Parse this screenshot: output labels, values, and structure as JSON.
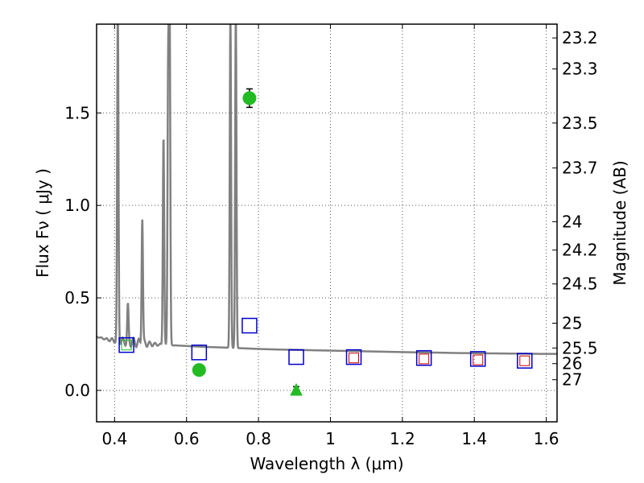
{
  "chart_data": {
    "type": "scatter",
    "xlabel": "Wavelength  λ (μm)",
    "ylabel": "Flux  Fν  ( μJy )",
    "y2label": "Magnitude (AB)",
    "xlim": [
      0.35,
      1.63
    ],
    "ylim": [
      -0.17,
      1.98
    ],
    "grid": true,
    "x_ticks": [
      0.4,
      0.6,
      0.8,
      1.0,
      1.2,
      1.4,
      1.6
    ],
    "x_tick_labels": [
      "0.4",
      "0.6",
      "0.8",
      "1",
      "1.2",
      "1.4",
      "1.6"
    ],
    "y_ticks": [
      0.0,
      0.5,
      1.0,
      1.5
    ],
    "y_tick_labels": [
      "0.0",
      "0.5",
      "1.0",
      "1.5"
    ],
    "y2_ticks": [
      {
        "label": "23.2",
        "flux": 1.9055
      },
      {
        "label": "23.3",
        "flux": 1.7378
      },
      {
        "label": "23.5",
        "flux": 1.4454
      },
      {
        "label": "23.7",
        "flux": 1.2023
      },
      {
        "label": "24",
        "flux": 0.912
      },
      {
        "label": "24.2",
        "flux": 0.7586
      },
      {
        "label": "24.5",
        "flux": 0.5754
      },
      {
        "label": "25",
        "flux": 0.3631
      },
      {
        "label": "25.5",
        "flux": 0.2291
      },
      {
        "label": "26",
        "flux": 0.1445
      },
      {
        "label": "27",
        "flux": 0.0575
      }
    ],
    "colors": {
      "model": "#808080",
      "detection": "#22bb22",
      "model_photometry": "#0000cc",
      "upper_limit": "#cc0000",
      "errorbar": "#000000",
      "grid": "#555555"
    },
    "series": [
      {
        "kind": "model_spectrum",
        "continuum": [
          [
            0.35,
            0.29
          ],
          [
            0.38,
            0.275
          ],
          [
            0.4,
            0.27
          ],
          [
            0.45,
            0.26
          ],
          [
            0.5,
            0.25
          ],
          [
            0.55,
            0.245
          ],
          [
            0.6,
            0.24
          ],
          [
            0.65,
            0.235
          ],
          [
            0.7,
            0.232
          ],
          [
            0.75,
            0.228
          ],
          [
            0.8,
            0.224
          ],
          [
            0.85,
            0.221
          ],
          [
            0.9,
            0.219
          ],
          [
            0.95,
            0.217
          ],
          [
            1.0,
            0.215
          ],
          [
            1.05,
            0.213
          ],
          [
            1.1,
            0.211
          ],
          [
            1.15,
            0.209
          ],
          [
            1.2,
            0.207
          ],
          [
            1.25,
            0.205
          ],
          [
            1.3,
            0.204
          ],
          [
            1.35,
            0.202
          ],
          [
            1.4,
            0.201
          ],
          [
            1.45,
            0.2
          ],
          [
            1.5,
            0.199
          ],
          [
            1.55,
            0.198
          ],
          [
            1.6,
            0.197
          ],
          [
            1.63,
            0.197
          ]
        ],
        "emission_lines": [
          {
            "center": 0.409,
            "peak": 2.05
          },
          {
            "center": 0.437,
            "peak": 0.45
          },
          {
            "center": 0.477,
            "peak": 0.94
          },
          {
            "center": 0.536,
            "peak": 1.38
          },
          {
            "center": 0.549,
            "peak": 1.74
          },
          {
            "center": 0.553,
            "peak": 2.05
          },
          {
            "center": 0.722,
            "peak": 2.05
          },
          {
            "center": 0.737,
            "peak": 2.05
          }
        ]
      },
      {
        "kind": "model_photometry",
        "marker": "open-square",
        "points": [
          [
            0.433,
            0.245
          ],
          [
            0.635,
            0.205
          ],
          [
            0.775,
            0.35
          ],
          [
            0.905,
            0.18
          ],
          [
            1.065,
            0.18
          ],
          [
            1.26,
            0.175
          ],
          [
            1.41,
            0.17
          ],
          [
            1.54,
            0.16
          ]
        ]
      },
      {
        "kind": "upper_limit",
        "marker": "open-square-small",
        "points": [
          [
            0.433,
            0.245
          ],
          [
            1.065,
            0.175
          ],
          [
            1.26,
            0.17
          ],
          [
            1.41,
            0.165
          ],
          [
            1.54,
            0.16
          ]
        ]
      },
      {
        "kind": "detection",
        "marker": "filled-circle",
        "points": [
          [
            0.635,
            0.11,
            0.02
          ],
          [
            0.775,
            1.58,
            0.05
          ]
        ]
      },
      {
        "kind": "non_detection",
        "marker": "filled-triangle",
        "points": [
          [
            0.905,
            0.0,
            0.02
          ]
        ]
      }
    ]
  }
}
